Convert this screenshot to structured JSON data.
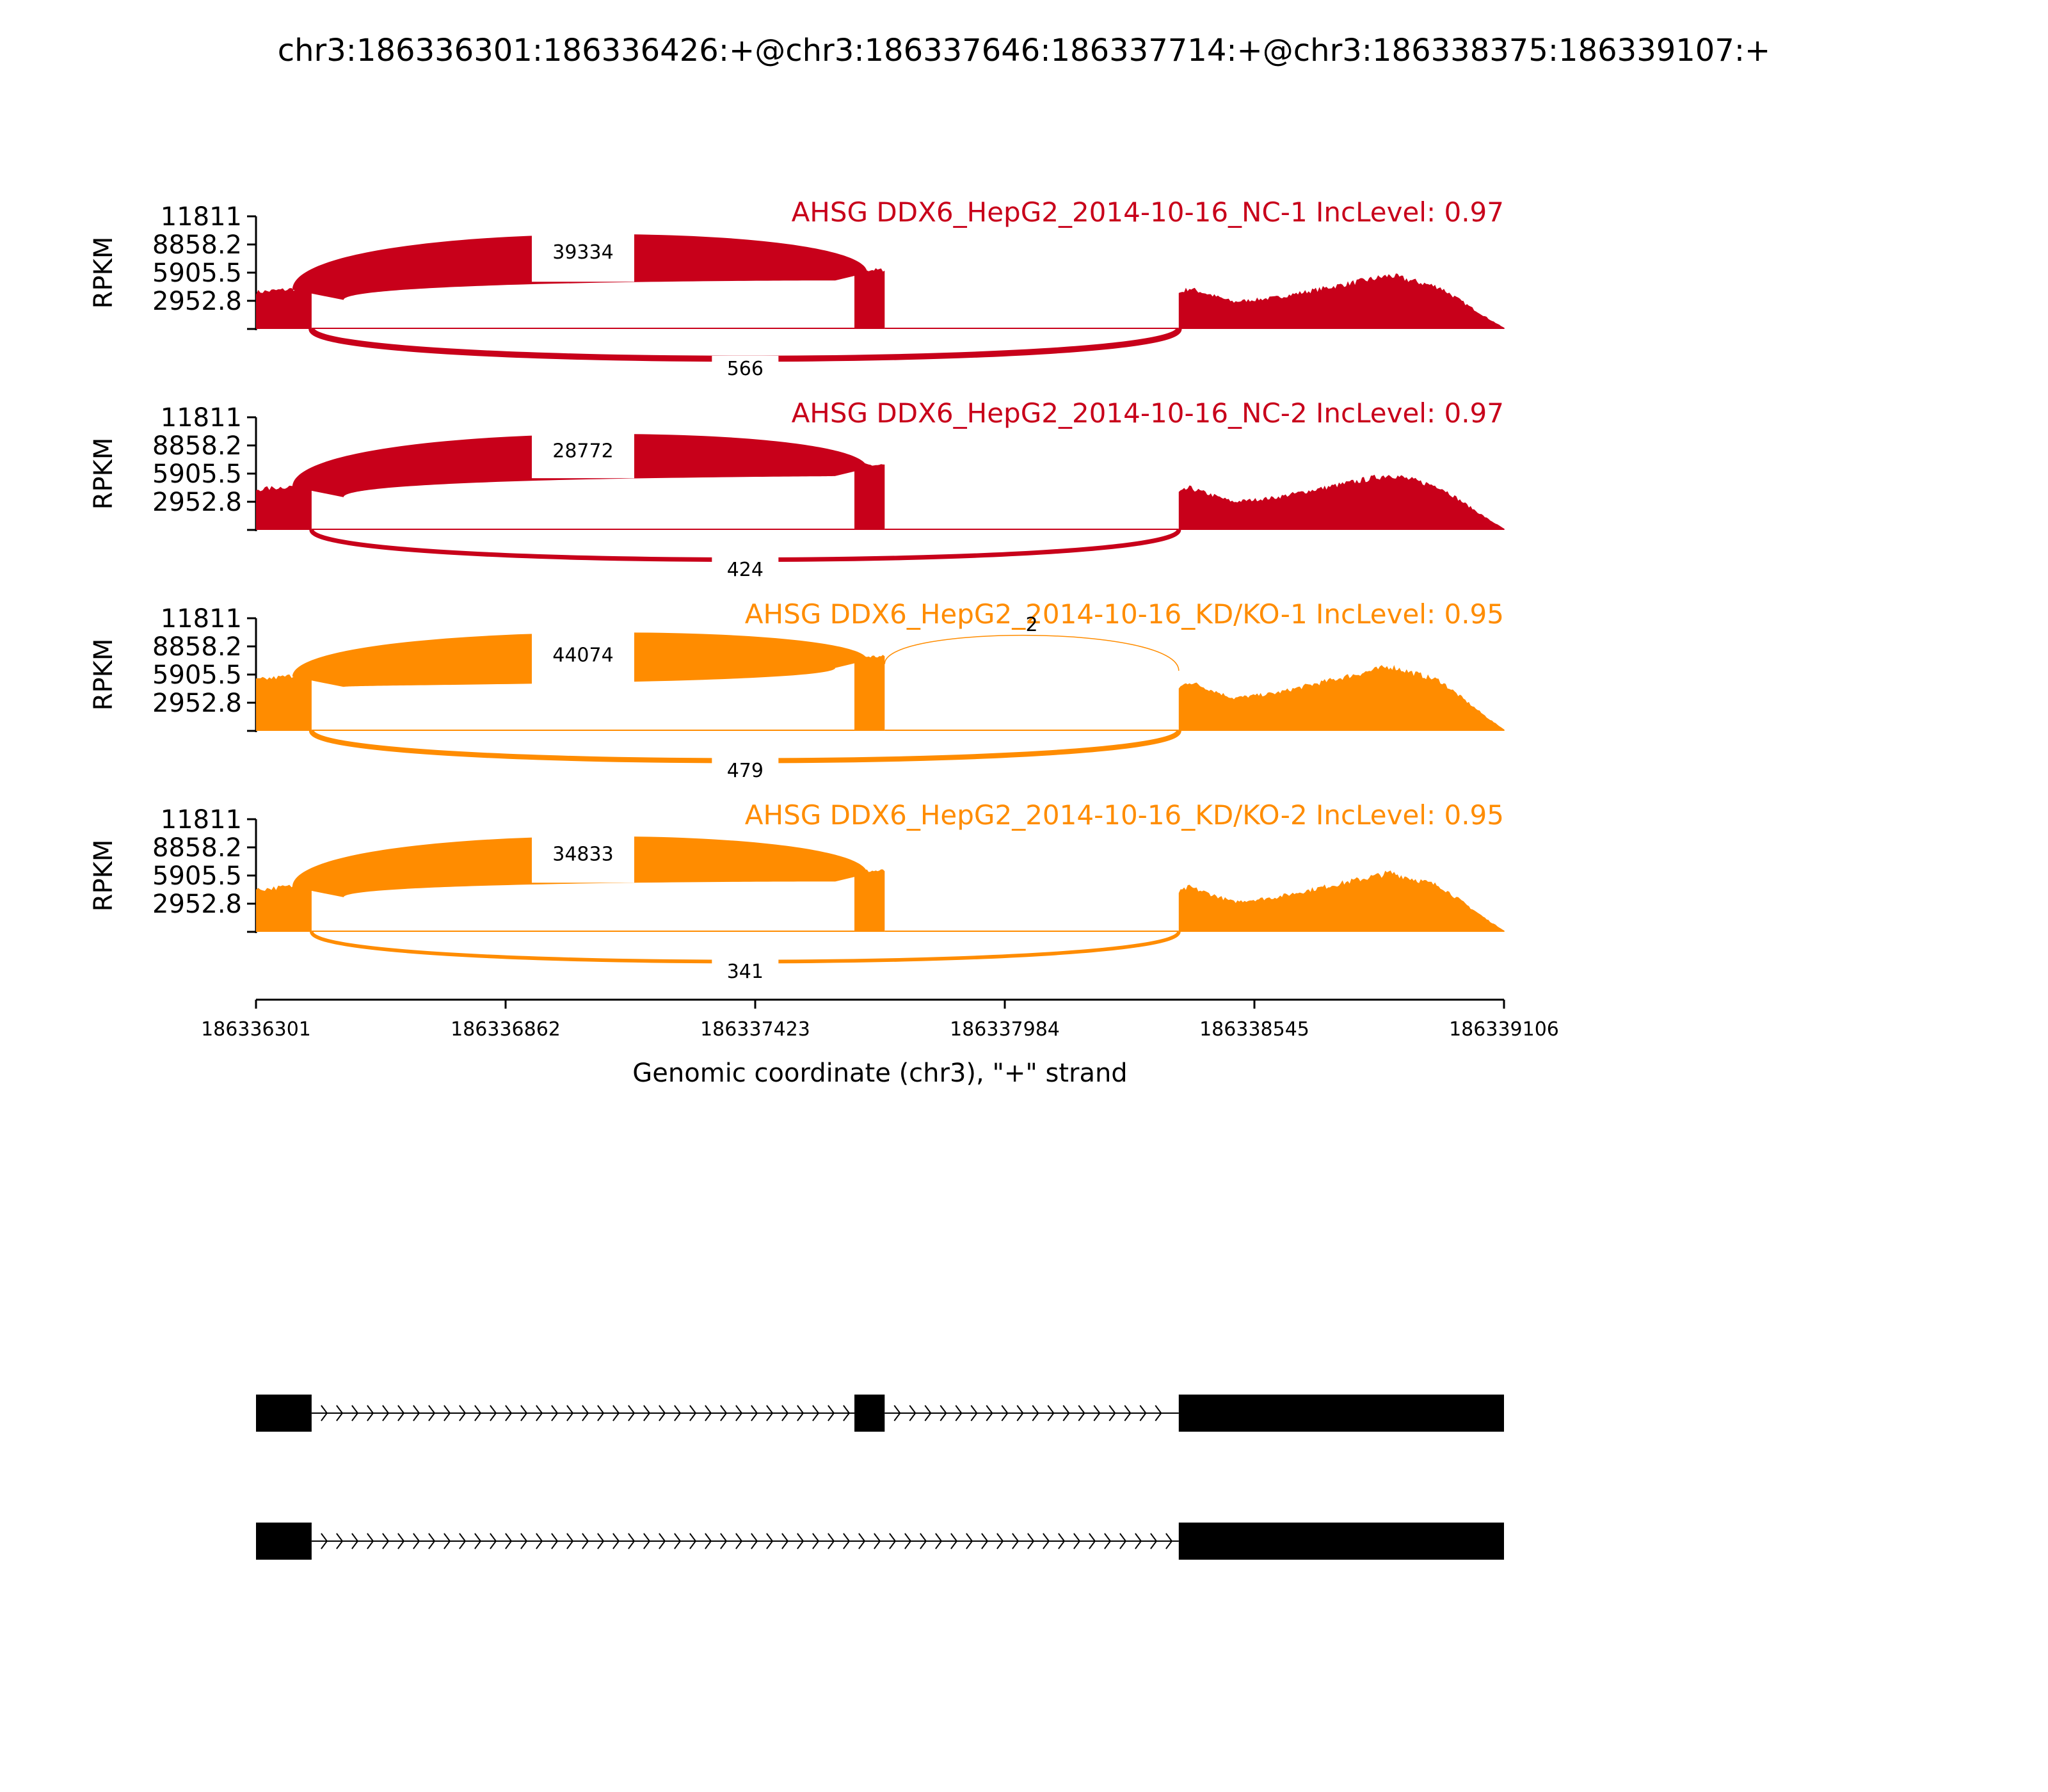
{
  "title": "chr3:186336301:186336426:+@chr3:186337646:186337714:+@chr3:186338375:186339107:+",
  "chart_data": {
    "type": "sashimi",
    "y_axis_label": "RPKM",
    "y_ticks": [
      "11811",
      "8858.2",
      "5905.5",
      "2952.8"
    ],
    "y_max": 11811,
    "x_axis_label": "Genomic coordinate (chr3), \"+\" strand",
    "x_ticks": [
      "186336301",
      "186336862",
      "186337423",
      "186337984",
      "186338545",
      "186339106"
    ],
    "x_range": [
      186336301,
      186339106
    ],
    "exons": [
      {
        "start": 186336301,
        "end": 186336426
      },
      {
        "start": 186337646,
        "end": 186337714
      },
      {
        "start": 186338375,
        "end": 186339107
      }
    ],
    "samples": [
      {
        "label": "AHSG DDX6_HepG2_2014-10-16_NC-1 IncLevel: 0.97",
        "color": "#c8001a",
        "exon_levels": [
          4200,
          6200,
          5800
        ],
        "junctions": [
          {
            "from": 186336426,
            "to": 186337646,
            "count": "39334",
            "side": "above"
          },
          {
            "from": 186336426,
            "to": 186338375,
            "count": "566",
            "side": "below"
          }
        ]
      },
      {
        "label": "AHSG DDX6_HepG2_2014-10-16_NC-2 IncLevel: 0.97",
        "color": "#c8001a",
        "exon_levels": [
          4600,
          6800,
          6000
        ],
        "junctions": [
          {
            "from": 186336426,
            "to": 186337646,
            "count": "28772",
            "side": "above"
          },
          {
            "from": 186336426,
            "to": 186338375,
            "count": "424",
            "side": "below"
          }
        ]
      },
      {
        "label": "AHSG DDX6_HepG2_2014-10-16_KD/KO-1 IncLevel: 0.95",
        "color": "#ff8c00",
        "exon_levels": [
          5800,
          7800,
          7000
        ],
        "junctions": [
          {
            "from": 186336426,
            "to": 186337646,
            "count": "44074",
            "side": "above"
          },
          {
            "from": 186337714,
            "to": 186338375,
            "count": "2",
            "side": "above"
          },
          {
            "from": 186336426,
            "to": 186338375,
            "count": "479",
            "side": "below"
          }
        ]
      },
      {
        "label": "AHSG DDX6_HepG2_2014-10-16_KD/KO-2 IncLevel: 0.95",
        "color": "#ff8c00",
        "exon_levels": [
          4800,
          6400,
          6400
        ],
        "junctions": [
          {
            "from": 186336426,
            "to": 186337646,
            "count": "34833",
            "side": "above"
          },
          {
            "from": 186336426,
            "to": 186338375,
            "count": "341",
            "side": "below"
          }
        ]
      }
    ],
    "isoforms": [
      {
        "exons": [
          [
            186336301,
            186336426
          ],
          [
            186337646,
            186337714
          ],
          [
            186338375,
            186339106
          ]
        ]
      },
      {
        "exons": [
          [
            186336301,
            186336426
          ],
          [
            186338375,
            186339106
          ]
        ]
      }
    ]
  }
}
